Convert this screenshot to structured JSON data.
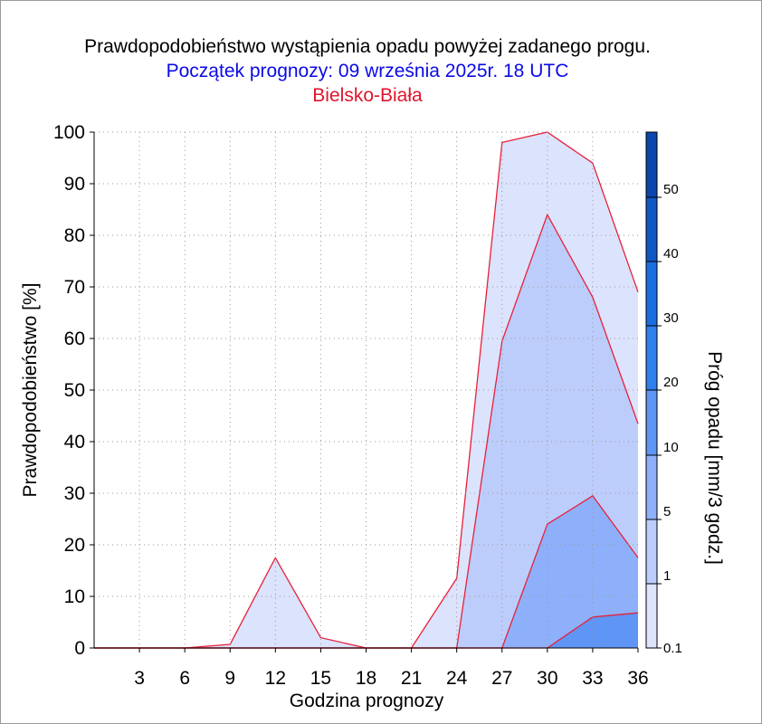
{
  "chart_data": {
    "type": "area",
    "title": "Prawdopodobieństwo wystąpienia opadu powyżej zadanego progu.",
    "subtitle": "Początek prognozy: 09 września 2025r. 18 UTC",
    "location": "Bielsko-Biała",
    "xlabel": "Godzina prognozy",
    "ylabel": "Prawdopodobieństwo [%]",
    "colorbar_label": "Próg opadu [mm/3 godz.]",
    "xlim": [
      0,
      36
    ],
    "ylim": [
      0,
      100
    ],
    "x_ticks": [
      3,
      6,
      9,
      12,
      15,
      18,
      21,
      24,
      27,
      30,
      33,
      36
    ],
    "y_ticks": [
      0,
      10,
      20,
      30,
      40,
      50,
      60,
      70,
      80,
      90,
      100
    ],
    "grid": true,
    "x": [
      0,
      3,
      6,
      9,
      12,
      15,
      18,
      21,
      24,
      27,
      30,
      33,
      36
    ],
    "series": [
      {
        "name": "0.1",
        "color": "#dce3fc",
        "values": [
          0,
          0,
          0,
          0.7,
          17.5,
          2,
          0,
          0,
          13.5,
          98,
          100,
          94,
          69
        ]
      },
      {
        "name": "1",
        "color": "#bccdfc",
        "values": [
          0,
          0,
          0,
          0,
          0,
          0,
          0,
          0,
          0,
          59.5,
          84,
          68,
          43.5
        ]
      },
      {
        "name": "5",
        "color": "#8eb0fb",
        "values": [
          0,
          0,
          0,
          0,
          0,
          0,
          0,
          0,
          0,
          0,
          24,
          29.5,
          17.5
        ]
      },
      {
        "name": "10",
        "color": "#5f95f4",
        "values": [
          0,
          0,
          0,
          0,
          0,
          0,
          0,
          0,
          0,
          0,
          0,
          6,
          6.8
        ]
      }
    ],
    "colorbar": {
      "labels": [
        "0.1",
        "1",
        "5",
        "10",
        "20",
        "30",
        "40",
        "50"
      ],
      "bands": [
        "#dde4fc",
        "#bccdfc",
        "#8eb0fb",
        "#5f95f4",
        "#2f80ed",
        "#1a6ee0",
        "#1058c4",
        "#0a46ad"
      ]
    }
  }
}
